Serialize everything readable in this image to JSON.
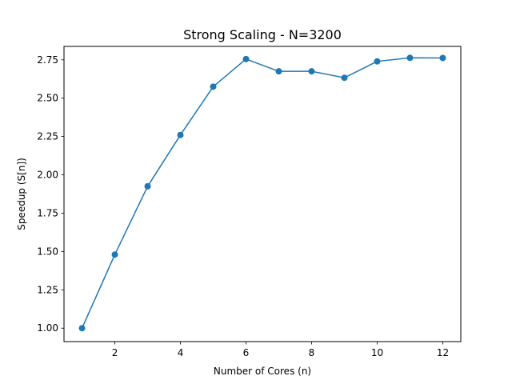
{
  "chart_data": {
    "type": "line",
    "title": "Strong Scaling - N=3200",
    "xlabel": "Number of Cores (n)",
    "ylabel": "Speedup (S[n])",
    "x": [
      1,
      2,
      3,
      4,
      5,
      6,
      7,
      8,
      9,
      10,
      11,
      12
    ],
    "series": [
      {
        "values": [
          1.0,
          1.48,
          1.925,
          2.26,
          2.575,
          2.755,
          2.675,
          2.675,
          2.633,
          2.74,
          2.763,
          2.762
        ],
        "color": "#1f77b4",
        "marker": "circle"
      }
    ],
    "xlim": [
      0.45,
      12.55
    ],
    "ylim": [
      0.9125,
      2.8375
    ],
    "xticks": [
      2,
      4,
      6,
      8,
      10,
      12
    ],
    "yticks": [
      1.0,
      1.25,
      1.5,
      1.75,
      2.0,
      2.25,
      2.5,
      2.75
    ],
    "yticks_decimals": 2,
    "grid": false,
    "legend": "none"
  }
}
